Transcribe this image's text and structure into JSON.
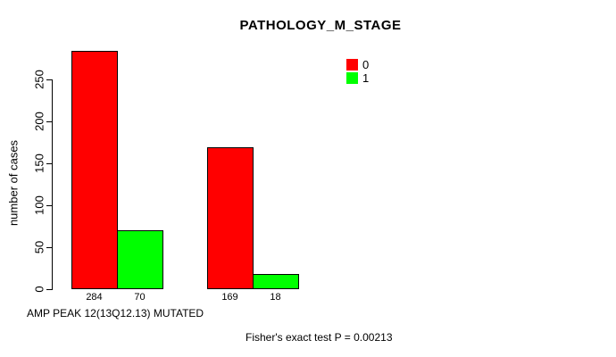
{
  "page": {
    "background": "#ffffff",
    "text_color": "#000000"
  },
  "chart_data": {
    "type": "bar",
    "title": "PATHOLOGY_M_STAGE",
    "ylabel": "number of cases",
    "xlabel": "AMP PEAK 12(13Q12.13) MUTATED",
    "annotation": "Fisher's exact test P = 0.00213",
    "categories": [
      "",
      ""
    ],
    "series": [
      {
        "name": "0",
        "color": "#ff0000",
        "values": [
          284,
          169
        ]
      },
      {
        "name": "1",
        "color": "#00ff00",
        "values": [
          70,
          18
        ]
      }
    ],
    "show_bar_values": true,
    "bar_edge_color": "#000000",
    "yticks": [
      0,
      50,
      100,
      150,
      200,
      250
    ],
    "ylim": [
      0,
      250
    ],
    "grid": false,
    "legend_position": "top-right"
  }
}
